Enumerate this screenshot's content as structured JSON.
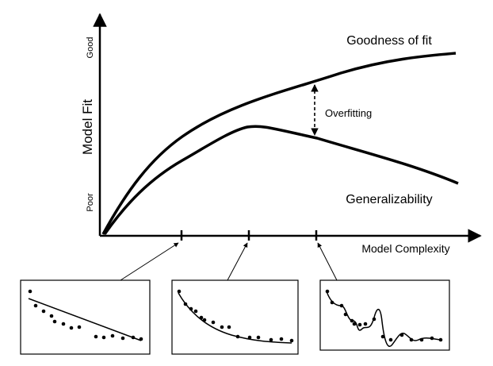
{
  "axes": {
    "y_label": "Model Fit",
    "y_top_label": "Good",
    "y_bottom_label": "Poor",
    "x_label": "Model Complexity"
  },
  "curves": {
    "goodness_label": "Goodness of fit",
    "generalizability_label": "Generalizability",
    "overfitting_label": "Overfitting"
  }
}
